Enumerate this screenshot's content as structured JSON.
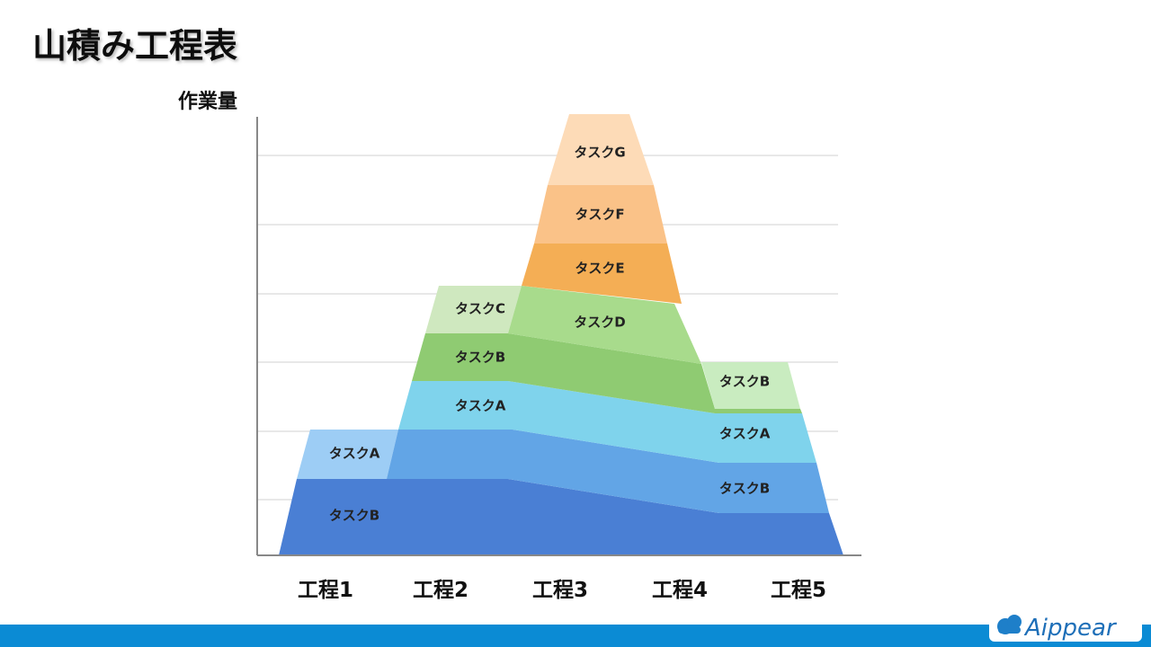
{
  "header": {
    "title": "山積み工程表"
  },
  "diagram": {
    "y_axis_label": "作業量",
    "stages": [
      "工程1",
      "工程2",
      "工程3",
      "工程4",
      "工程5"
    ],
    "tasks": [
      {
        "label": "タスクB"
      },
      {
        "label": "タスクA"
      },
      {
        "label": "タスクC"
      },
      {
        "label": "タスクB"
      },
      {
        "label": "タスクA"
      },
      {
        "label": "タスクG"
      },
      {
        "label": "タスクF"
      },
      {
        "label": "タスクE"
      },
      {
        "label": "タスクD"
      },
      {
        "label": "タスクB"
      },
      {
        "label": "タスクA"
      },
      {
        "label": "タスクB"
      }
    ]
  },
  "footer": {
    "logo": "Aippear"
  }
}
